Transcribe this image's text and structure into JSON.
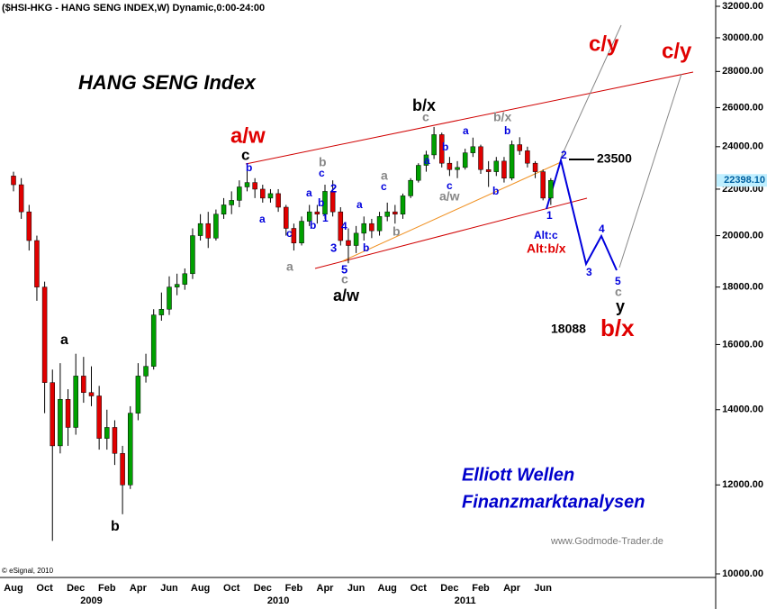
{
  "chart_data": {
    "type": "candlestick",
    "title": "($HSI-HKG - HANG SENG INDEX,W) Dynamic,0:00-24:00",
    "heading": "HANG SENG Index",
    "credit": "© eSignal, 2010",
    "brand": [
      "Elliott Wellen",
      "Finanzmarktanalysen"
    ],
    "website": "www.Godmode-Trader.de",
    "log_scale": true,
    "ylim": [
      10000,
      32000
    ],
    "yticks": [
      {
        "value": 32000,
        "label": "32000.00"
      },
      {
        "value": 30000,
        "label": "30000.00"
      },
      {
        "value": 28000,
        "label": "28000.00"
      },
      {
        "value": 26000,
        "label": "26000.00"
      },
      {
        "value": 24000,
        "label": "24000.00"
      },
      {
        "value": 22000,
        "label": "22000.00"
      },
      {
        "value": 20000,
        "label": "20000.00"
      },
      {
        "value": 18000,
        "label": "18000.00"
      },
      {
        "value": 16000,
        "label": "16000.00"
      },
      {
        "value": 14000,
        "label": "14000.00"
      },
      {
        "value": 12000,
        "label": "12000.00"
      },
      {
        "value": 10000,
        "label": "10000.00"
      }
    ],
    "categories": [
      "Aug",
      null,
      null,
      null,
      "Oct",
      null,
      null,
      null,
      "Dec",
      null,
      null,
      null,
      "Feb",
      null,
      null,
      null,
      "Apr",
      null,
      null,
      null,
      "Jun",
      null,
      null,
      null,
      "Aug",
      null,
      null,
      null,
      "Oct",
      null,
      null,
      null,
      "Dec",
      null,
      null,
      null,
      "Feb",
      null,
      null,
      null,
      "Apr",
      null,
      null,
      null,
      "Jun",
      null,
      null,
      null,
      "Aug",
      null,
      null,
      null,
      "Oct",
      null,
      null,
      null,
      "Dec",
      null,
      null,
      null,
      "Feb",
      null,
      null,
      null,
      "Apr",
      null,
      null,
      null,
      "Jun",
      null
    ],
    "years": [
      null,
      null,
      null,
      null,
      null,
      null,
      null,
      null,
      null,
      null,
      "2009",
      null,
      null,
      null,
      null,
      null,
      null,
      null,
      null,
      null,
      null,
      null,
      null,
      null,
      null,
      null,
      null,
      null,
      null,
      null,
      null,
      null,
      null,
      null,
      "2010",
      null,
      null,
      null,
      null,
      null,
      null,
      null,
      null,
      null,
      null,
      null,
      null,
      null,
      null,
      null,
      null,
      null,
      null,
      null,
      null,
      null,
      null,
      null,
      "2011",
      null,
      null,
      null,
      null,
      null,
      null,
      null,
      null,
      null,
      null,
      null
    ],
    "up_color": "#00a000",
    "down_color": "#e00000",
    "open": [
      22600,
      22200,
      21000,
      19800,
      18000,
      14800,
      13000,
      14300,
      13500,
      15000,
      14500,
      14400,
      13200,
      13500,
      12800,
      12000,
      13900,
      15000,
      15300,
      17000,
      17200,
      18000,
      18100,
      18500,
      20000,
      20500,
      19900,
      20900,
      21300,
      21500,
      22100,
      22300,
      22000,
      21600,
      21800,
      21200,
      20300,
      19700,
      20600,
      21000,
      20900,
      21900,
      21000,
      19800,
      19600,
      20100,
      20500,
      20200,
      20800,
      21000,
      20900,
      21700,
      22400,
      23100,
      23600,
      24600,
      23200,
      22900,
      23000,
      23700,
      24000,
      22900,
      22800,
      23300,
      22500,
      24100,
      23800,
      23200,
      22800,
      21600
    ],
    "high": [
      22800,
      22500,
      21300,
      20000,
      18200,
      15200,
      15400,
      14600,
      15700,
      15600,
      15300,
      14700,
      14000,
      13700,
      13000,
      14100,
      15400,
      15700,
      17200,
      17800,
      18400,
      18500,
      18700,
      20300,
      20900,
      21000,
      21100,
      21600,
      21900,
      22400,
      23100,
      22500,
      22200,
      22000,
      22000,
      21300,
      20500,
      20800,
      21300,
      21300,
      22200,
      22400,
      21200,
      20300,
      20400,
      20800,
      20700,
      21000,
      21400,
      21300,
      21800,
      22500,
      23200,
      23800,
      24990,
      24700,
      23500,
      23300,
      23900,
      24450,
      24100,
      23300,
      23500,
      23500,
      24300,
      24470,
      24000,
      23300,
      22900,
      22500
    ],
    "low": [
      21900,
      20700,
      19400,
      17500,
      13900,
      10700,
      12800,
      13000,
      13300,
      14200,
      14100,
      12900,
      12900,
      12500,
      11300,
      11900,
      13700,
      14800,
      15200,
      16800,
      17000,
      17700,
      17900,
      18300,
      19800,
      19500,
      19800,
      20700,
      20900,
      21200,
      21900,
      21600,
      21400,
      21400,
      21000,
      20000,
      19400,
      19600,
      20400,
      20500,
      20700,
      20800,
      19600,
      18900,
      19300,
      19800,
      19900,
      20000,
      20600,
      20500,
      20700,
      21600,
      22300,
      22800,
      23400,
      23000,
      22600,
      22500,
      22900,
      23500,
      22700,
      22100,
      22600,
      22300,
      22400,
      23600,
      23000,
      22500,
      21500,
      21300
    ],
    "close": [
      22200,
      21000,
      19800,
      18000,
      14800,
      13000,
      14300,
      13500,
      15000,
      14500,
      14400,
      13200,
      13500,
      12800,
      12000,
      13900,
      15000,
      15300,
      17000,
      17200,
      18000,
      18100,
      18500,
      20000,
      20500,
      19900,
      20900,
      21300,
      21500,
      22100,
      22300,
      22000,
      21600,
      21800,
      21200,
      20300,
      19700,
      20600,
      21000,
      20900,
      21900,
      21000,
      19800,
      19600,
      20100,
      20500,
      20200,
      20800,
      21000,
      20900,
      21700,
      22400,
      23100,
      23600,
      24600,
      23200,
      22900,
      23000,
      23700,
      24000,
      22900,
      22800,
      23300,
      22500,
      24100,
      23800,
      23200,
      22800,
      21600,
      22398.1
    ],
    "last_close_label": "22398.10",
    "annotations": [
      {
        "text": "a/w",
        "color": "#e00000"
      },
      {
        "text": "c",
        "color": "#000000"
      },
      {
        "text": "b",
        "color": "#0000dd"
      },
      {
        "text": "a",
        "color": "#0000dd"
      },
      {
        "text": "c",
        "color": "#0000dd"
      },
      {
        "text": "a",
        "color": "#888888"
      },
      {
        "text": "b",
        "color": "#888888"
      },
      {
        "text": "c",
        "color": "#0000dd"
      },
      {
        "text": "a",
        "color": "#0000dd"
      },
      {
        "text": "b",
        "color": "#0000dd"
      },
      {
        "text": "2",
        "color": "#0000dd"
      },
      {
        "text": "1",
        "color": "#0000dd"
      },
      {
        "text": "b",
        "color": "#0000dd"
      },
      {
        "text": "4",
        "color": "#0000dd"
      },
      {
        "text": "3",
        "color": "#0000dd"
      },
      {
        "text": "b",
        "color": "#0000dd"
      },
      {
        "text": "5",
        "color": "#0000dd"
      },
      {
        "text": "c",
        "color": "#888888"
      },
      {
        "text": "a/w",
        "color": "#000000"
      },
      {
        "text": "a",
        "color": "#888888"
      },
      {
        "text": "c",
        "color": "#0000dd"
      },
      {
        "text": "a",
        "color": "#0000dd"
      },
      {
        "text": "b",
        "color": "#888888"
      },
      {
        "text": "b/x",
        "color": "#000000"
      },
      {
        "text": "c",
        "color": "#888888"
      },
      {
        "text": "a",
        "color": "#0000dd"
      },
      {
        "text": "b",
        "color": "#0000dd"
      },
      {
        "text": "a",
        "color": "#0000dd"
      },
      {
        "text": "c",
        "color": "#0000dd"
      },
      {
        "text": "a/w",
        "color": "#888888"
      },
      {
        "text": "b/x",
        "color": "#888888"
      },
      {
        "text": "b",
        "color": "#0000dd"
      },
      {
        "text": "b",
        "color": "#0000dd"
      },
      {
        "text": "1",
        "color": "#0000dd"
      },
      {
        "text": "2",
        "color": "#0000dd"
      },
      {
        "text": "23500",
        "color": "#000000"
      },
      {
        "text": "Alt:c",
        "color": "#0000dd"
      },
      {
        "text": "Alt:b/x",
        "color": "#e00000"
      },
      {
        "text": "3",
        "color": "#0000dd"
      },
      {
        "text": "4",
        "color": "#0000dd"
      },
      {
        "text": "5",
        "color": "#0000dd"
      },
      {
        "text": "c",
        "color": "#888888"
      },
      {
        "text": "y",
        "color": "#000000"
      },
      {
        "text": "18088",
        "color": "#000000"
      },
      {
        "text": "b/x",
        "color": "#e00000"
      },
      {
        "text": "c/y",
        "color": "#e00000"
      },
      {
        "text": "c/y",
        "color": "#e00000"
      },
      {
        "text": "a",
        "color": "#000000"
      },
      {
        "text": "b",
        "color": "#000000"
      }
    ]
  }
}
